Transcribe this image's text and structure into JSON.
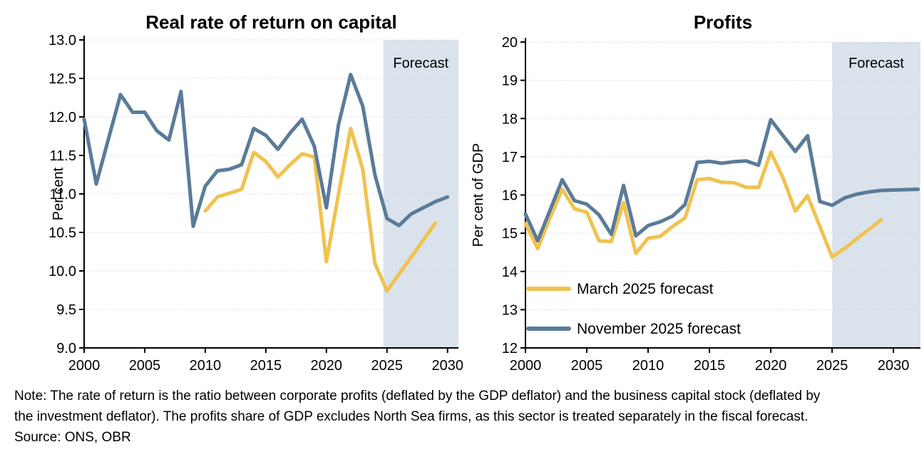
{
  "note": {
    "line1": "Note: The rate of return is the ratio between corporate profits (deflated by the GDP deflator) and the business capital stock (deflated by",
    "line2": "the investment deflator). The profits share of GDP excludes North Sea firms, as this sector is treated separately in the fiscal forecast.",
    "source": "Source: ONS, OBR"
  },
  "colors": {
    "march": "#F0C24F",
    "november": "#5A7B99",
    "forecast_band": "#DAE2EB",
    "gridline": "#D9D9D9",
    "axis": "#000000",
    "text": "#000000"
  },
  "chart_data": [
    {
      "type": "line",
      "title": "Real rate of return on capital",
      "ylabel": "Per cent",
      "xlabel": "",
      "xlim": [
        2000,
        2030.9
      ],
      "ylim": [
        9.0,
        13.0
      ],
      "x_ticks": [
        2000,
        2005,
        2010,
        2015,
        2020,
        2025,
        2030
      ],
      "y_ticks": [
        9.0,
        9.5,
        10.0,
        10.5,
        11.0,
        11.5,
        12.0,
        12.5,
        13.0
      ],
      "y_tick_decimals": 1,
      "grid": "horizontal-dotted",
      "forecast": {
        "label": "Forecast",
        "start_year": 2024.7
      },
      "legend": null,
      "series": [
        {
          "name": "March 2025 forecast",
          "color_key": "march",
          "start_year": 2010,
          "values": [
            10.78,
            10.96,
            11.01,
            11.06,
            11.54,
            11.42,
            11.22,
            11.38,
            11.52,
            11.48,
            10.12,
            11.0,
            11.85,
            11.32,
            10.1,
            9.74,
            9.96,
            10.18,
            10.4,
            10.62
          ]
        },
        {
          "name": "November 2025 forecast",
          "color_key": "november",
          "start_year": 2000,
          "values": [
            11.97,
            11.13,
            11.71,
            12.29,
            12.06,
            12.06,
            11.82,
            11.7,
            12.33,
            10.58,
            11.1,
            11.3,
            11.32,
            11.38,
            11.85,
            11.76,
            11.58,
            11.79,
            11.97,
            11.62,
            10.82,
            11.9,
            12.55,
            12.14,
            11.25,
            10.68,
            10.59,
            10.74,
            10.82,
            10.9,
            10.96
          ]
        }
      ]
    },
    {
      "type": "line",
      "title": "Profits",
      "ylabel": "Per cent of GDP",
      "xlabel": "",
      "xlim": [
        2000,
        2032.2
      ],
      "ylim": [
        12,
        20
      ],
      "x_ticks": [
        2000,
        2005,
        2010,
        2015,
        2020,
        2025,
        2030
      ],
      "y_ticks": [
        12,
        13,
        14,
        15,
        16,
        17,
        18,
        19,
        20
      ],
      "y_tick_decimals": 0,
      "grid": "horizontal-dotted",
      "forecast": {
        "label": "Forecast",
        "start_year": 2025
      },
      "legend": {
        "position": "lower-left"
      },
      "series": [
        {
          "name": "March 2025 forecast",
          "color_key": "march",
          "start_year": 2000,
          "values": [
            15.25,
            14.6,
            15.4,
            16.15,
            15.64,
            15.55,
            14.8,
            14.78,
            15.8,
            14.47,
            14.87,
            14.92,
            15.18,
            15.4,
            16.4,
            16.43,
            16.33,
            16.32,
            16.2,
            16.2,
            17.12,
            16.45,
            15.58,
            15.98,
            15.18,
            14.38,
            14.6,
            14.85,
            15.1,
            15.35
          ]
        },
        {
          "name": "November 2025 forecast",
          "color_key": "november",
          "start_year": 2000,
          "values": [
            15.5,
            14.8,
            15.6,
            16.4,
            15.85,
            15.76,
            15.48,
            14.97,
            16.25,
            14.93,
            15.2,
            15.3,
            15.45,
            15.75,
            16.85,
            16.88,
            16.83,
            16.87,
            16.89,
            16.78,
            17.97,
            17.55,
            17.14,
            17.55,
            15.83,
            15.73,
            15.92,
            16.02,
            16.08,
            16.12,
            16.13,
            16.14,
            16.15
          ]
        }
      ]
    }
  ]
}
